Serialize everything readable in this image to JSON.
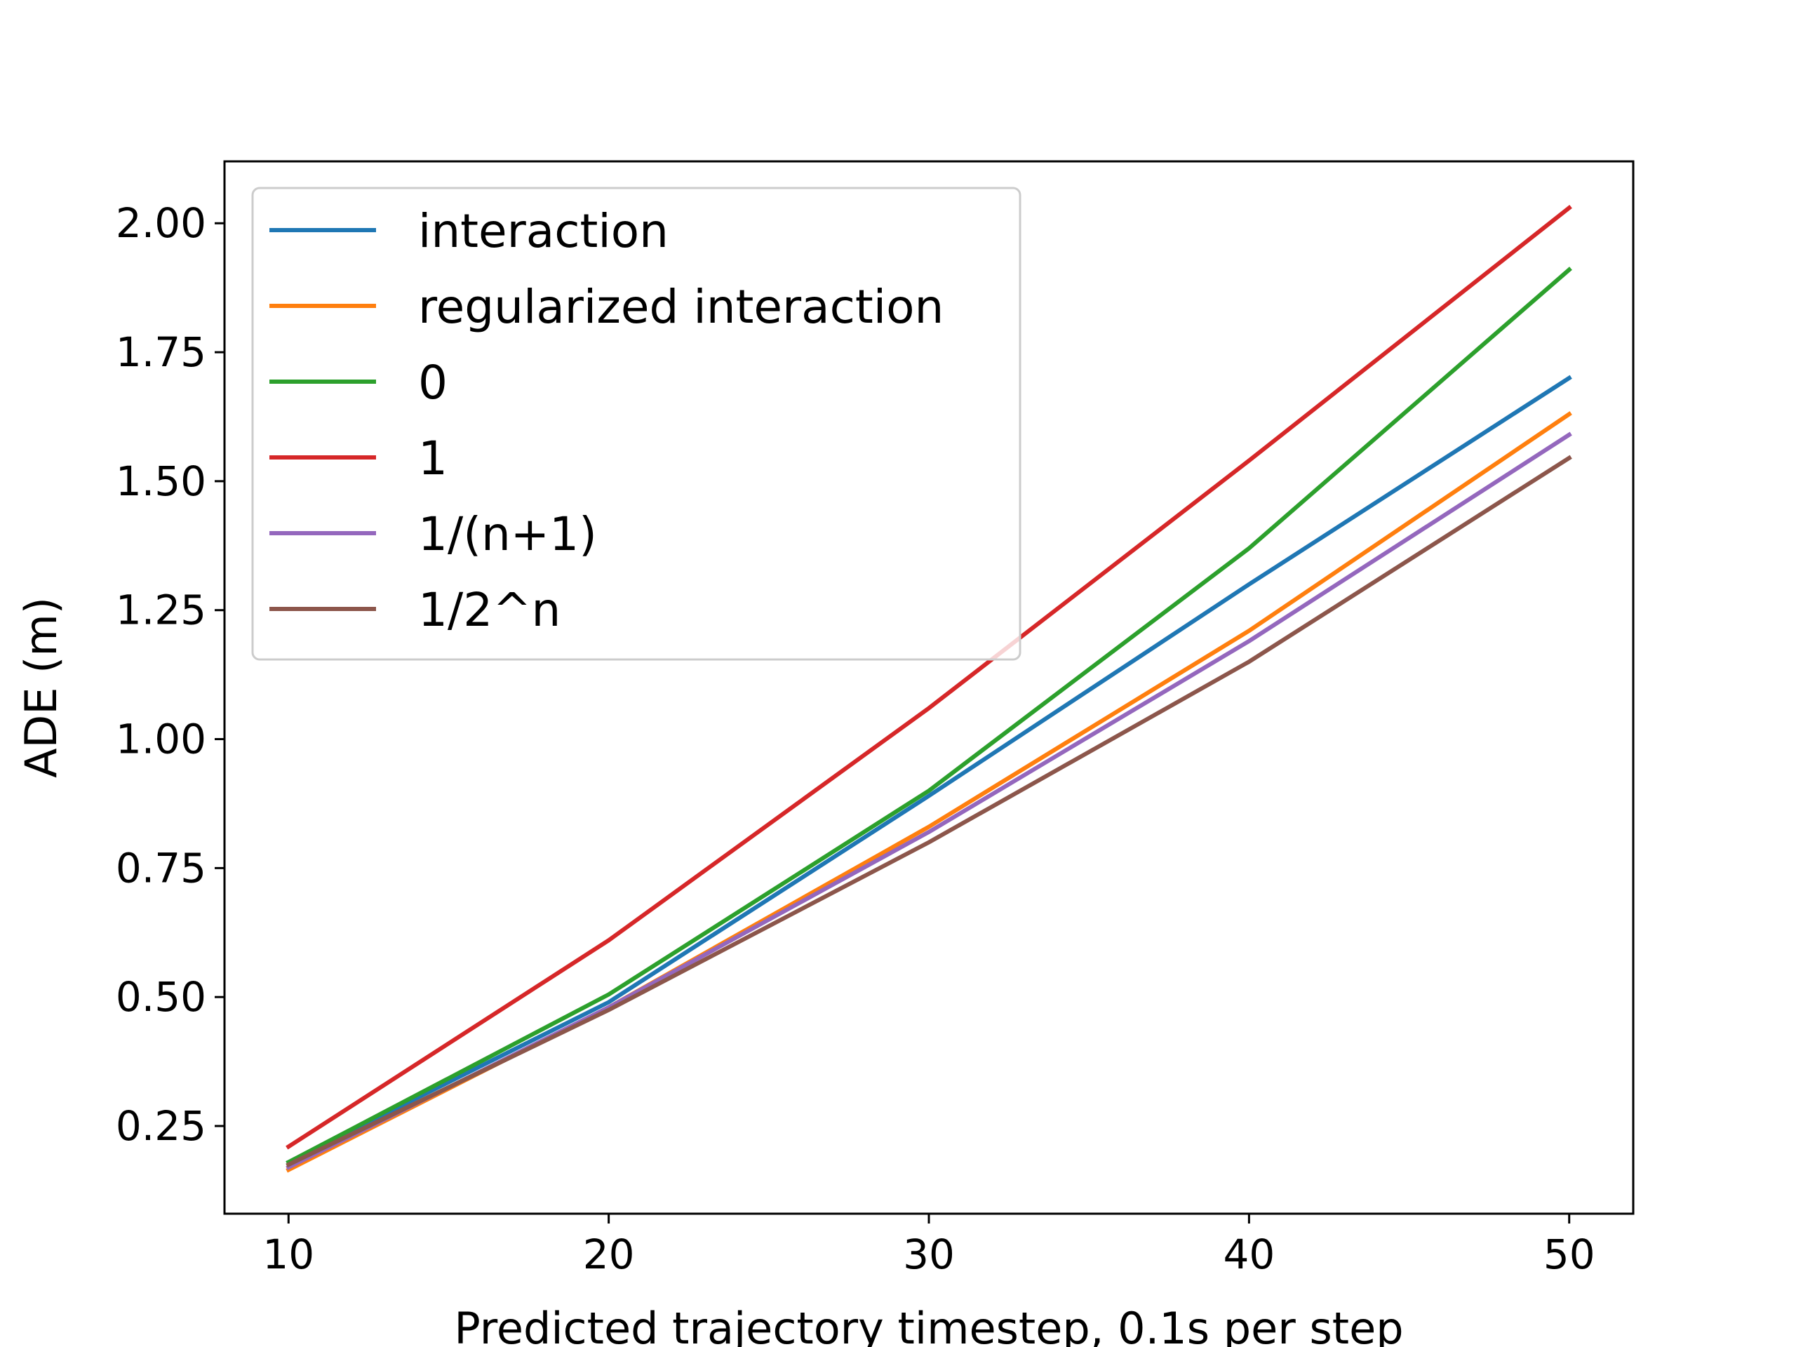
{
  "chart_data": {
    "type": "line",
    "title": "",
    "xlabel": "Predicted trajectory timestep, 0.1s per step",
    "ylabel": "ADE (m)",
    "x": [
      10,
      20,
      30,
      40,
      50
    ],
    "xlim": [
      8,
      52
    ],
    "ylim": [
      0.08,
      2.12
    ],
    "xticks": [
      10,
      20,
      30,
      40,
      50
    ],
    "xtick_labels": [
      "10",
      "20",
      "30",
      "40",
      "50"
    ],
    "yticks": [
      0.25,
      0.5,
      0.75,
      1.0,
      1.25,
      1.5,
      1.75,
      2.0
    ],
    "ytick_labels": [
      "0.25",
      "0.50",
      "0.75",
      "1.00",
      "1.25",
      "1.50",
      "1.75",
      "2.00"
    ],
    "grid": false,
    "legend_position": "top-left",
    "series": [
      {
        "name": "interaction",
        "color": "#1f77b4",
        "values": [
          0.18,
          0.49,
          0.89,
          1.3,
          1.7
        ]
      },
      {
        "name": "regularized interaction",
        "color": "#ff7f0e",
        "values": [
          0.165,
          0.48,
          0.83,
          1.21,
          1.63
        ]
      },
      {
        "name": "0",
        "color": "#2ca02c",
        "values": [
          0.18,
          0.505,
          0.9,
          1.37,
          1.91
        ]
      },
      {
        "name": "1",
        "color": "#d62728",
        "values": [
          0.21,
          0.61,
          1.06,
          1.54,
          2.03
        ]
      },
      {
        "name": "1/(n+1)",
        "color": "#9467bd",
        "values": [
          0.17,
          0.48,
          0.82,
          1.19,
          1.59
        ]
      },
      {
        "name": "1/2^n",
        "color": "#8c564b",
        "values": [
          0.175,
          0.475,
          0.8,
          1.15,
          1.545
        ]
      }
    ]
  }
}
